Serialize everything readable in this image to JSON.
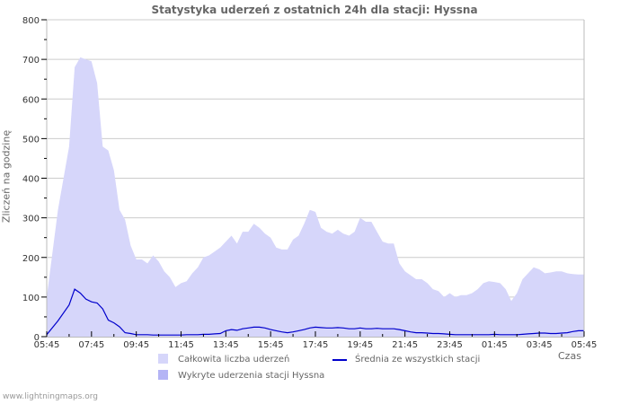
{
  "title": "Statystyka uderzeń z ostatnich 24h dla stacji: Hyssna",
  "ylabel": "Zliczeń na godzinę",
  "xlabel": "Czas",
  "footer": "www.lightningmaps.org",
  "legend": {
    "total": "Całkowita liczba uderzeń",
    "avg": "Średnia ze wszystkich stacji",
    "detected": "Wykryte uderzenia stacji Hyssna"
  },
  "colors": {
    "total_fill": "#d6d6fa",
    "detected_fill": "#b4b4f5",
    "avg_line": "#0000cc",
    "grid": "#cccccc",
    "axis": "#bbbbbb"
  },
  "chart_data": {
    "type": "area",
    "title": "Statystyka uderzeń z ostatnich 24h dla stacji: Hyssna",
    "xlabel": "Czas",
    "ylabel": "Zliczeń na godzinę",
    "ylim": [
      0,
      800
    ],
    "yticks": [
      0,
      100,
      200,
      300,
      400,
      500,
      600,
      700,
      800
    ],
    "xticks": [
      "05:45",
      "07:45",
      "09:45",
      "11:45",
      "13:45",
      "15:45",
      "17:45",
      "19:45",
      "21:45",
      "23:45",
      "01:45",
      "03:45",
      "05:45"
    ],
    "grid": true,
    "legend_position": "bottom",
    "x": [
      "05:45",
      "06:15",
      "06:45",
      "07:00",
      "07:15",
      "07:30",
      "07:45",
      "08:00",
      "08:15",
      "08:30",
      "08:45",
      "09:00",
      "09:15",
      "09:30",
      "09:45",
      "10:00",
      "10:15",
      "10:30",
      "10:45",
      "11:00",
      "11:15",
      "11:30",
      "11:45",
      "12:00",
      "12:15",
      "12:30",
      "12:45",
      "13:00",
      "13:15",
      "13:30",
      "13:45",
      "14:00",
      "14:15",
      "14:30",
      "14:45",
      "15:00",
      "15:15",
      "15:30",
      "15:45",
      "16:00",
      "16:15",
      "16:30",
      "16:45",
      "17:00",
      "17:15",
      "17:30",
      "17:45",
      "18:00",
      "18:15",
      "18:30",
      "18:45",
      "19:00",
      "19:15",
      "19:30",
      "19:45",
      "20:00",
      "20:15",
      "20:30",
      "20:45",
      "21:00",
      "21:15",
      "21:30",
      "21:45",
      "22:00",
      "22:15",
      "22:30",
      "22:45",
      "23:00",
      "23:15",
      "23:30",
      "23:45",
      "00:00",
      "00:15",
      "00:30",
      "00:45",
      "01:00",
      "01:15",
      "01:30",
      "01:45",
      "02:00",
      "02:15",
      "02:30",
      "02:45",
      "03:00",
      "03:15",
      "03:30",
      "03:45",
      "04:00",
      "04:15",
      "04:30",
      "04:45",
      "05:00",
      "05:15",
      "05:30",
      "05:45"
    ],
    "series": [
      {
        "name": "Całkowita liczba uderzeń",
        "values": [
          100,
          320,
          480,
          680,
          705,
          700,
          695,
          640,
          480,
          470,
          420,
          320,
          295,
          230,
          195,
          195,
          185,
          205,
          190,
          165,
          150,
          125,
          135,
          140,
          160,
          175,
          200,
          205,
          215,
          225,
          240,
          255,
          235,
          265,
          265,
          285,
          275,
          260,
          250,
          225,
          220,
          220,
          245,
          255,
          285,
          320,
          315,
          275,
          265,
          260,
          270,
          260,
          255,
          265,
          300,
          290,
          290,
          265,
          240,
          235,
          235,
          185,
          165,
          155,
          145,
          145,
          135,
          120,
          115,
          100,
          110,
          100,
          105,
          105,
          110,
          120,
          135,
          140,
          138,
          135,
          120,
          90,
          110,
          145,
          160,
          175,
          170,
          160,
          162,
          165,
          165,
          160,
          158,
          157,
          157
        ]
      },
      {
        "name": "Wykryte uderzenia stacji Hyssna",
        "values": []
      },
      {
        "name": "Średnia ze wszystkich stacji",
        "values": [
          5,
          40,
          80,
          120,
          110,
          95,
          88,
          85,
          70,
          42,
          35,
          25,
          10,
          8,
          5,
          5,
          5,
          4,
          4,
          4,
          4,
          4,
          4,
          5,
          5,
          5,
          6,
          6,
          7,
          8,
          15,
          18,
          16,
          20,
          22,
          24,
          24,
          22,
          18,
          15,
          12,
          10,
          12,
          15,
          18,
          22,
          24,
          23,
          22,
          22,
          23,
          22,
          20,
          20,
          22,
          20,
          20,
          21,
          20,
          20,
          20,
          18,
          15,
          12,
          10,
          10,
          9,
          8,
          8,
          7,
          6,
          5,
          5,
          5,
          5,
          5,
          5,
          5,
          6,
          5,
          5,
          5,
          5,
          6,
          7,
          8,
          9,
          9,
          8,
          8,
          9,
          10,
          13,
          15,
          15
        ]
      }
    ]
  }
}
